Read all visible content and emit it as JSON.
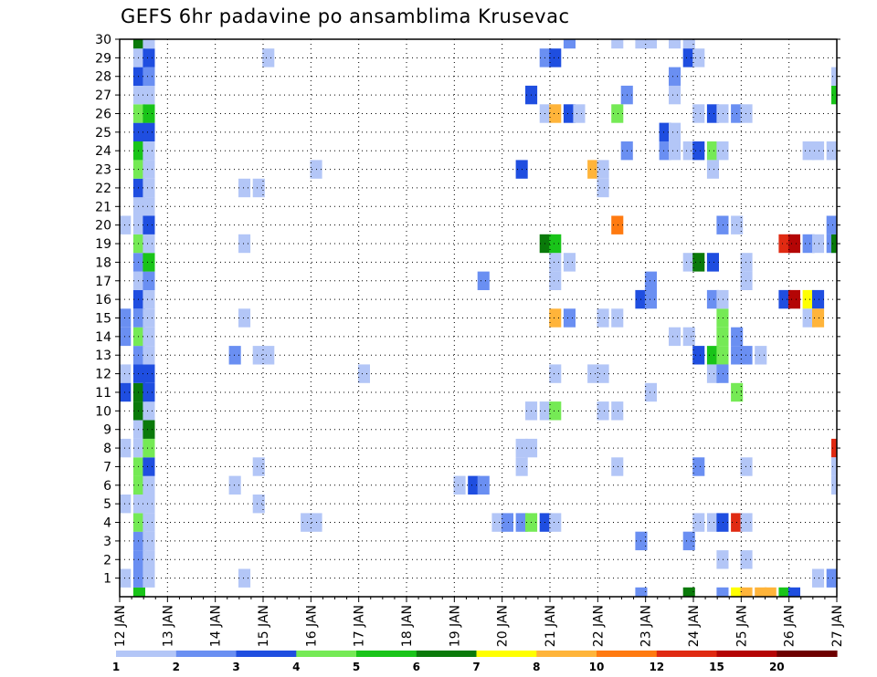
{
  "chart_data": {
    "type": "heatmap",
    "title": "GEFS 6hr padavine po ansamblima Krusevac",
    "xlabel": "",
    "ylabel": "",
    "x_tick_labels": [
      "12 JAN",
      "13 JAN",
      "14 JAN",
      "15 JAN",
      "16 JAN",
      "17 JAN",
      "18 JAN",
      "19 JAN",
      "20 JAN",
      "21 JAN",
      "22 JAN",
      "23 JAN",
      "24 JAN",
      "25 JAN",
      "26 JAN",
      "27 JAN"
    ],
    "y_tick_labels": [
      "1",
      "2",
      "3",
      "4",
      "5",
      "6",
      "7",
      "8",
      "9",
      "10",
      "11",
      "12",
      "13",
      "14",
      "15",
      "16",
      "17",
      "18",
      "19",
      "20",
      "21",
      "22",
      "23",
      "24",
      "25",
      "26",
      "27",
      "28",
      "29",
      "30"
    ],
    "grid": true,
    "colorbar": {
      "labels": [
        "1",
        "2",
        "3",
        "4",
        "5",
        "6",
        "7",
        "8",
        "10",
        "12",
        "15",
        "20"
      ],
      "colors": [
        "#b3c6f7",
        "#6a8ff2",
        "#1f4ee0",
        "#75ea55",
        "#19c419",
        "#0a7a0a",
        "#ffff00",
        "#ffb43a",
        "#ff7a10",
        "#e02a12",
        "#b40505",
        "#6e0000"
      ]
    },
    "cells": [
      {
        "day": 12.4,
        "m": 0,
        "c": 4
      },
      {
        "day": 12.4,
        "m": 1,
        "c": 0
      },
      {
        "day": 12.4,
        "m": 1,
        "c": 1
      },
      {
        "day": 12.4,
        "m": 2,
        "c": 1
      },
      {
        "day": 12.4,
        "m": 3,
        "c": 1
      },
      {
        "day": 12.4,
        "m": 4,
        "c": 3
      },
      {
        "day": 12.4,
        "m": 5,
        "c": 0
      },
      {
        "day": 12.4,
        "m": 6,
        "c": 3
      },
      {
        "day": 12.4,
        "m": 7,
        "c": 3
      },
      {
        "day": 12.4,
        "m": 8,
        "c": 0
      },
      {
        "day": 12.4,
        "m": 9,
        "c": 0
      },
      {
        "day": 12.4,
        "m": 10,
        "c": 5
      },
      {
        "day": 12.4,
        "m": 11,
        "c": 5
      },
      {
        "day": 12.4,
        "m": 12,
        "c": 2
      },
      {
        "day": 12.4,
        "m": 13,
        "c": 1
      },
      {
        "day": 12.4,
        "m": 14,
        "c": 3
      },
      {
        "day": 12.4,
        "m": 15,
        "c": 1
      },
      {
        "day": 12.4,
        "m": 16,
        "c": 2
      },
      {
        "day": 12.4,
        "m": 17,
        "c": 0
      },
      {
        "day": 12.4,
        "m": 18,
        "c": 1
      },
      {
        "day": 12.4,
        "m": 19,
        "c": 3
      },
      {
        "day": 12.4,
        "m": 20,
        "c": 0
      },
      {
        "day": 12.4,
        "m": 21,
        "c": 0
      },
      {
        "day": 12.4,
        "m": 22,
        "c": 2
      },
      {
        "day": 12.4,
        "m": 23,
        "c": 3
      },
      {
        "day": 12.4,
        "m": 24,
        "c": 4
      },
      {
        "day": 12.4,
        "m": 25,
        "c": 2
      },
      {
        "day": 12.4,
        "m": 26,
        "c": 3
      },
      {
        "day": 12.4,
        "m": 27,
        "c": 0
      },
      {
        "day": 12.4,
        "m": 28,
        "c": 2
      },
      {
        "day": 12.4,
        "m": 29,
        "c": 0
      },
      {
        "day": 12.4,
        "m": 30,
        "c": 5
      },
      {
        "day": 12.1,
        "m": 1,
        "c": 0
      },
      {
        "day": 12.1,
        "m": 5,
        "c": 0
      },
      {
        "day": 12.1,
        "m": 8,
        "c": 0
      },
      {
        "day": 12.1,
        "m": 12,
        "c": 0
      },
      {
        "day": 12.1,
        "m": 15,
        "c": 1
      },
      {
        "day": 12.1,
        "m": 20,
        "c": 0
      },
      {
        "day": 12.6,
        "m": 1,
        "c": 0
      },
      {
        "day": 12.6,
        "m": 2,
        "c": 0
      },
      {
        "day": 12.6,
        "m": 3,
        "c": 0
      },
      {
        "day": 12.6,
        "m": 4,
        "c": 0
      },
      {
        "day": 12.6,
        "m": 5,
        "c": 0
      },
      {
        "day": 12.6,
        "m": 6,
        "c": 0
      },
      {
        "day": 12.6,
        "m": 7,
        "c": 2
      },
      {
        "day": 12.6,
        "m": 8,
        "c": 3
      },
      {
        "day": 12.6,
        "m": 9,
        "c": 5
      },
      {
        "day": 12.6,
        "m": 10,
        "c": 0
      },
      {
        "day": 12.6,
        "m": 11,
        "c": 2
      },
      {
        "day": 12.6,
        "m": 12,
        "c": 2
      },
      {
        "day": 12.6,
        "m": 13,
        "c": 0
      },
      {
        "day": 12.6,
        "m": 14,
        "c": 0
      },
      {
        "day": 12.6,
        "m": 15,
        "c": 0
      },
      {
        "day": 12.6,
        "m": 16,
        "c": 0
      },
      {
        "day": 12.6,
        "m": 17,
        "c": 1
      },
      {
        "day": 12.6,
        "m": 18,
        "c": 4
      },
      {
        "day": 12.6,
        "m": 19,
        "c": 0
      },
      {
        "day": 12.6,
        "m": 20,
        "c": 2
      },
      {
        "day": 12.6,
        "m": 21,
        "c": 0
      },
      {
        "day": 12.6,
        "m": 22,
        "c": 0
      },
      {
        "day": 12.6,
        "m": 23,
        "c": 0
      },
      {
        "day": 12.6,
        "m": 24,
        "c": 0
      },
      {
        "day": 12.6,
        "m": 25,
        "c": 2
      },
      {
        "day": 12.6,
        "m": 26,
        "c": 4
      },
      {
        "day": 12.6,
        "m": 27,
        "c": 0
      },
      {
        "day": 12.6,
        "m": 28,
        "c": 1
      },
      {
        "day": 12.6,
        "m": 29,
        "c": 2
      },
      {
        "day": 12.6,
        "m": 30,
        "c": 0
      },
      {
        "day": 12.1,
        "m": 11,
        "c": 2
      },
      {
        "day": 12.1,
        "m": 14,
        "c": 1
      },
      {
        "day": 14.4,
        "m": 6,
        "c": 0
      },
      {
        "day": 14.4,
        "m": 13,
        "c": 1
      },
      {
        "day": 14.6,
        "m": 1,
        "c": 0
      },
      {
        "day": 14.6,
        "m": 15,
        "c": 0
      },
      {
        "day": 14.6,
        "m": 19,
        "c": 0
      },
      {
        "day": 14.6,
        "m": 22,
        "c": 0
      },
      {
        "day": 14.9,
        "m": 5,
        "c": 0
      },
      {
        "day": 14.9,
        "m": 7,
        "c": 0
      },
      {
        "day": 14.9,
        "m": 13,
        "c": 0
      },
      {
        "day": 14.9,
        "m": 22,
        "c": 0
      },
      {
        "day": 15.1,
        "m": 13,
        "c": 0
      },
      {
        "day": 15.1,
        "m": 29,
        "c": 0
      },
      {
        "day": 15.9,
        "m": 4,
        "c": 0
      },
      {
        "day": 16.1,
        "m": 4,
        "c": 0
      },
      {
        "day": 16.1,
        "m": 23,
        "c": 0
      },
      {
        "day": 17.1,
        "m": 12,
        "c": 0
      },
      {
        "day": 19.1,
        "m": 6,
        "c": 0
      },
      {
        "day": 19.4,
        "m": 6,
        "c": 2
      },
      {
        "day": 19.6,
        "m": 6,
        "c": 1
      },
      {
        "day": 19.6,
        "m": 17,
        "c": 1
      },
      {
        "day": 19.9,
        "m": 4,
        "c": 0
      },
      {
        "day": 20.1,
        "m": 4,
        "c": 1
      },
      {
        "day": 20.4,
        "m": 4,
        "c": 1
      },
      {
        "day": 20.6,
        "m": 4,
        "c": 3
      },
      {
        "day": 20.9,
        "m": 4,
        "c": 2
      },
      {
        "day": 21.1,
        "m": 4,
        "c": 0
      },
      {
        "day": 20.4,
        "m": 7,
        "c": 0
      },
      {
        "day": 20.4,
        "m": 8,
        "c": 0
      },
      {
        "day": 20.6,
        "m": 8,
        "c": 0
      },
      {
        "day": 20.4,
        "m": 23,
        "c": 2
      },
      {
        "day": 20.6,
        "m": 10,
        "c": 0
      },
      {
        "day": 20.9,
        "m": 10,
        "c": 0
      },
      {
        "day": 21.1,
        "m": 10,
        "c": 3
      },
      {
        "day": 21.1,
        "m": 12,
        "c": 0
      },
      {
        "day": 21.1,
        "m": 15,
        "c": 7
      },
      {
        "day": 21.4,
        "m": 15,
        "c": 1
      },
      {
        "day": 21.1,
        "m": 17,
        "c": 0
      },
      {
        "day": 21.1,
        "m": 18,
        "c": 0
      },
      {
        "day": 21.4,
        "m": 18,
        "c": 0
      },
      {
        "day": 20.9,
        "m": 19,
        "c": 5
      },
      {
        "day": 21.1,
        "m": 19,
        "c": 4
      },
      {
        "day": 20.6,
        "m": 27,
        "c": 2
      },
      {
        "day": 20.9,
        "m": 26,
        "c": 0
      },
      {
        "day": 21.1,
        "m": 26,
        "c": 7
      },
      {
        "day": 21.4,
        "m": 26,
        "c": 2
      },
      {
        "day": 21.6,
        "m": 26,
        "c": 0
      },
      {
        "day": 20.9,
        "m": 29,
        "c": 1
      },
      {
        "day": 21.1,
        "m": 29,
        "c": 2
      },
      {
        "day": 21.4,
        "m": 30,
        "c": 1
      },
      {
        "day": 21.9,
        "m": 12,
        "c": 0
      },
      {
        "day": 22.1,
        "m": 12,
        "c": 0
      },
      {
        "day": 22.1,
        "m": 10,
        "c": 0
      },
      {
        "day": 22.4,
        "m": 10,
        "c": 0
      },
      {
        "day": 22.1,
        "m": 15,
        "c": 0
      },
      {
        "day": 22.4,
        "m": 15,
        "c": 0
      },
      {
        "day": 22.4,
        "m": 7,
        "c": 0
      },
      {
        "day": 21.9,
        "m": 23,
        "c": 7
      },
      {
        "day": 22.1,
        "m": 23,
        "c": 0
      },
      {
        "day": 22.1,
        "m": 22,
        "c": 0
      },
      {
        "day": 22.4,
        "m": 20,
        "c": 8
      },
      {
        "day": 22.4,
        "m": 26,
        "c": 3
      },
      {
        "day": 22.6,
        "m": 24,
        "c": 1
      },
      {
        "day": 22.6,
        "m": 27,
        "c": 1
      },
      {
        "day": 22.4,
        "m": 30,
        "c": 0
      },
      {
        "day": 22.9,
        "m": 3,
        "c": 1
      },
      {
        "day": 22.9,
        "m": 0,
        "c": 1
      },
      {
        "day": 22.9,
        "m": 16,
        "c": 2
      },
      {
        "day": 23.1,
        "m": 16,
        "c": 1
      },
      {
        "day": 23.1,
        "m": 17,
        "c": 1
      },
      {
        "day": 23.1,
        "m": 11,
        "c": 0
      },
      {
        "day": 22.9,
        "m": 30,
        "c": 0
      },
      {
        "day": 23.1,
        "m": 30,
        "c": 0
      },
      {
        "day": 23.4,
        "m": 24,
        "c": 1
      },
      {
        "day": 23.4,
        "m": 25,
        "c": 2
      },
      {
        "day": 23.6,
        "m": 25,
        "c": 0
      },
      {
        "day": 23.6,
        "m": 24,
        "c": 0
      },
      {
        "day": 23.9,
        "m": 24,
        "c": 0
      },
      {
        "day": 23.6,
        "m": 30,
        "c": 0
      },
      {
        "day": 23.9,
        "m": 30,
        "c": 0
      },
      {
        "day": 23.6,
        "m": 28,
        "c": 1
      },
      {
        "day": 23.6,
        "m": 27,
        "c": 0
      },
      {
        "day": 23.9,
        "m": 29,
        "c": 2
      },
      {
        "day": 24.1,
        "m": 29,
        "c": 0
      },
      {
        "day": 23.9,
        "m": 3,
        "c": 1
      },
      {
        "day": 23.9,
        "m": 0,
        "c": 5
      },
      {
        "day": 23.6,
        "m": 14,
        "c": 0
      },
      {
        "day": 23.9,
        "m": 14,
        "c": 0
      },
      {
        "day": 23.9,
        "m": 18,
        "c": 0
      },
      {
        "day": 24.1,
        "m": 7,
        "c": 1
      },
      {
        "day": 24.1,
        "m": 4,
        "c": 0
      },
      {
        "day": 24.4,
        "m": 4,
        "c": 0
      },
      {
        "day": 24.6,
        "m": 4,
        "c": 2
      },
      {
        "day": 24.9,
        "m": 4,
        "c": 9
      },
      {
        "day": 25.1,
        "m": 4,
        "c": 0
      },
      {
        "day": 24.1,
        "m": 13,
        "c": 2
      },
      {
        "day": 24.4,
        "m": 13,
        "c": 4
      },
      {
        "day": 24.6,
        "m": 13,
        "c": 3
      },
      {
        "day": 24.9,
        "m": 13,
        "c": 1
      },
      {
        "day": 25.1,
        "m": 13,
        "c": 1
      },
      {
        "day": 25.4,
        "m": 13,
        "c": 0
      },
      {
        "day": 24.4,
        "m": 12,
        "c": 0
      },
      {
        "day": 24.6,
        "m": 12,
        "c": 1
      },
      {
        "day": 24.6,
        "m": 14,
        "c": 3
      },
      {
        "day": 24.9,
        "m": 14,
        "c": 1
      },
      {
        "day": 24.6,
        "m": 15,
        "c": 3
      },
      {
        "day": 24.4,
        "m": 16,
        "c": 1
      },
      {
        "day": 24.6,
        "m": 16,
        "c": 0
      },
      {
        "day": 24.1,
        "m": 18,
        "c": 5
      },
      {
        "day": 24.4,
        "m": 18,
        "c": 2
      },
      {
        "day": 24.1,
        "m": 24,
        "c": 2
      },
      {
        "day": 24.4,
        "m": 24,
        "c": 3
      },
      {
        "day": 24.6,
        "m": 24,
        "c": 0
      },
      {
        "day": 24.4,
        "m": 23,
        "c": 0
      },
      {
        "day": 24.1,
        "m": 26,
        "c": 0
      },
      {
        "day": 24.4,
        "m": 26,
        "c": 2
      },
      {
        "day": 24.6,
        "m": 26,
        "c": 0
      },
      {
        "day": 24.9,
        "m": 26,
        "c": 1
      },
      {
        "day": 25.1,
        "m": 26,
        "c": 0
      },
      {
        "day": 24.9,
        "m": 11,
        "c": 3
      },
      {
        "day": 24.6,
        "m": 20,
        "c": 1
      },
      {
        "day": 24.9,
        "m": 20,
        "c": 0
      },
      {
        "day": 24.6,
        "m": 2,
        "c": 0
      },
      {
        "day": 25.1,
        "m": 2,
        "c": 0
      },
      {
        "day": 25.1,
        "m": 7,
        "c": 0
      },
      {
        "day": 25.1,
        "m": 17,
        "c": 0
      },
      {
        "day": 25.1,
        "m": 18,
        "c": 0
      },
      {
        "day": 24.6,
        "m": 0,
        "c": 1
      },
      {
        "day": 24.9,
        "m": 0,
        "c": 6
      },
      {
        "day": 25.1,
        "m": 0,
        "c": 7
      },
      {
        "day": 25.4,
        "m": 0,
        "c": 7
      },
      {
        "day": 25.6,
        "m": 0,
        "c": 7
      },
      {
        "day": 25.9,
        "m": 0,
        "c": 4
      },
      {
        "day": 26.1,
        "m": 0,
        "c": 2
      },
      {
        "day": 25.9,
        "m": 19,
        "c": 9
      },
      {
        "day": 26.1,
        "m": 19,
        "c": 10
      },
      {
        "day": 26.4,
        "m": 19,
        "c": 1
      },
      {
        "day": 26.6,
        "m": 19,
        "c": 0
      },
      {
        "day": 26.9,
        "m": 19,
        "c": 1
      },
      {
        "day": 27.0,
        "m": 19,
        "c": 5
      },
      {
        "day": 25.9,
        "m": 16,
        "c": 2
      },
      {
        "day": 26.1,
        "m": 16,
        "c": 10
      },
      {
        "day": 26.4,
        "m": 16,
        "c": 6
      },
      {
        "day": 26.6,
        "m": 16,
        "c": 2
      },
      {
        "day": 26.4,
        "m": 15,
        "c": 0
      },
      {
        "day": 26.6,
        "m": 15,
        "c": 7
      },
      {
        "day": 26.4,
        "m": 24,
        "c": 0
      },
      {
        "day": 26.6,
        "m": 24,
        "c": 0
      },
      {
        "day": 26.9,
        "m": 24,
        "c": 0
      },
      {
        "day": 26.6,
        "m": 1,
        "c": 0
      },
      {
        "day": 26.9,
        "m": 1,
        "c": 1
      },
      {
        "day": 26.9,
        "m": 20,
        "c": 1
      },
      {
        "day": 27.0,
        "m": 27,
        "c": 4
      },
      {
        "day": 27.0,
        "m": 28,
        "c": 0
      },
      {
        "day": 27.0,
        "m": 8,
        "c": 9
      },
      {
        "day": 27.0,
        "m": 7,
        "c": 0
      },
      {
        "day": 27.0,
        "m": 6,
        "c": 0
      }
    ]
  }
}
